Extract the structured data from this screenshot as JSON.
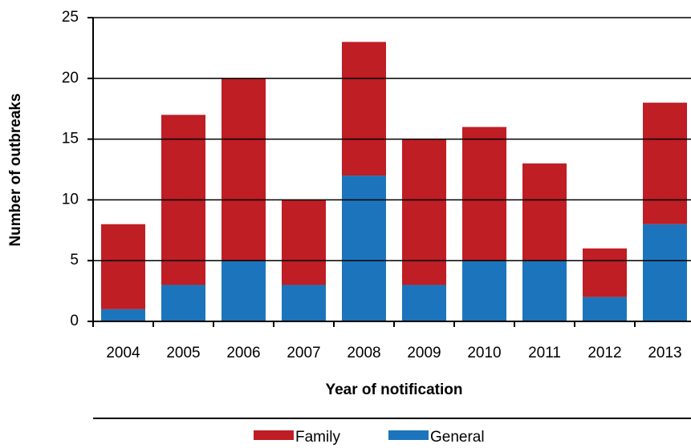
{
  "chart_data": {
    "type": "stacked_bar",
    "categories": [
      "2004",
      "2005",
      "2006",
      "2007",
      "2008",
      "2009",
      "2010",
      "2011",
      "2012",
      "2013"
    ],
    "series": [
      {
        "name": "General",
        "color": "#1c75bc",
        "values": [
          1,
          3,
          5,
          3,
          12,
          3,
          5,
          5,
          2,
          8
        ]
      },
      {
        "name": "Family",
        "color": "#be1e24",
        "values": [
          7,
          14,
          15,
          7,
          11,
          12,
          11,
          8,
          4,
          10
        ]
      }
    ],
    "x_label": "Year of notification",
    "y_label": "Number of outbreaks",
    "ylim": [
      0,
      25
    ],
    "yticks": [
      0,
      5,
      10,
      15,
      20,
      25
    ],
    "grid": true
  }
}
